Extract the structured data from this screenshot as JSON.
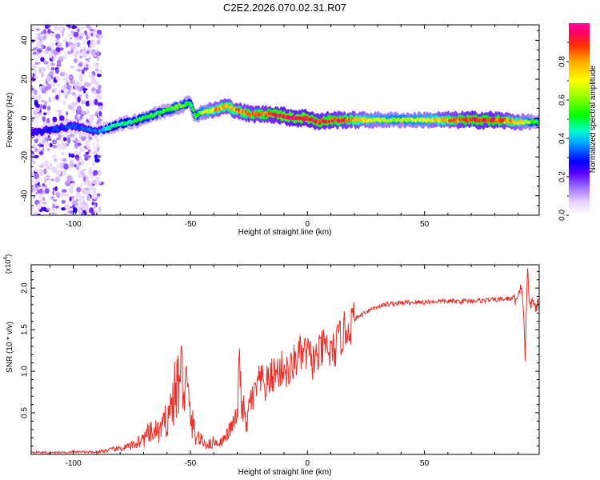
{
  "title": "C2E2.2026.070.02.31.R07",
  "chart_data": [
    {
      "type": "heatmap",
      "xlabel": "Height of straight line (km)",
      "ylabel": "Frequency (Hz)",
      "xlim": [
        -118,
        99
      ],
      "ylim": [
        -50,
        48
      ],
      "x_ticks": [
        -100,
        -50,
        0,
        50
      ],
      "x_tick_labels": [
        "-100",
        "-50",
        "0",
        "50"
      ],
      "y_ticks": [
        -40,
        -20,
        0,
        20,
        40
      ],
      "y_tick_labels": [
        "-40",
        "-20",
        "0",
        "20",
        "40"
      ],
      "colorbar": {
        "label": "Normalized spectral amplitude",
        "range": [
          0,
          1
        ],
        "ticks": [
          0.0,
          0.2,
          0.4,
          0.6,
          0.8
        ],
        "tick_labels": [
          "0.0",
          "0.2",
          "0.4",
          "0.6",
          "0.8"
        ]
      },
      "ridge": {
        "x": [
          -118,
          -110,
          -100,
          -90,
          -85,
          -80,
          -75,
          -70,
          -65,
          -60,
          -55,
          -50,
          -48,
          -45,
          -40,
          -35,
          -30,
          -25,
          -20,
          -15,
          -10,
          -5,
          0,
          5,
          10,
          15,
          20,
          30,
          40,
          50,
          60,
          70,
          80,
          90,
          99
        ],
        "frequency": [
          -8,
          -6,
          -4,
          -7,
          -5,
          -3,
          -2,
          0,
          2,
          4,
          6,
          8,
          1,
          3,
          4,
          6,
          4,
          2,
          2,
          2,
          1,
          0,
          0,
          -2,
          -1,
          -1,
          -1,
          -1,
          -1,
          -1,
          -1,
          -1,
          -1,
          -2,
          -2
        ],
        "amplitude": [
          0.25,
          0.3,
          0.35,
          0.35,
          0.45,
          0.5,
          0.5,
          0.55,
          0.55,
          0.55,
          0.6,
          0.55,
          0.55,
          0.65,
          0.8,
          0.85,
          0.85,
          0.9,
          0.9,
          0.95,
          1.0,
          1.0,
          1.0,
          0.95,
          0.95,
          0.9,
          0.85,
          0.7,
          0.65,
          0.7,
          0.85,
          0.95,
          0.95,
          0.8,
          0.5
        ]
      }
    },
    {
      "type": "line",
      "xlabel": "Height of straight line (km)",
      "ylabel": "SNR (10 * v/v)",
      "y_scale_label": "(x10",
      "y_scale_exponent": "4",
      "xlim": [
        -118,
        99
      ],
      "ylim": [
        0,
        2.28
      ],
      "x_ticks": [
        -100,
        -50,
        0,
        50
      ],
      "x_tick_labels": [
        "-100",
        "-50",
        "0",
        "50"
      ],
      "y_ticks": [
        0.5,
        1.0,
        1.5,
        2.0
      ],
      "y_tick_labels": [
        "0.5",
        "1.0",
        "1.5",
        "2.0"
      ],
      "color": "#e8302a",
      "series": {
        "x": [
          -118,
          -110,
          -100,
          -90,
          -85,
          -80,
          -75,
          -72,
          -70,
          -68,
          -65,
          -62,
          -60,
          -58,
          -56,
          -54,
          -52,
          -50,
          -48,
          -45,
          -42,
          -40,
          -38,
          -35,
          -32,
          -30,
          -29,
          -28,
          -27,
          -26,
          -25,
          -24,
          -23,
          -22,
          -20,
          -18,
          -15,
          -12,
          -10,
          -8,
          -6,
          -4,
          -2,
          0,
          2,
          4,
          6,
          8,
          10,
          12,
          14,
          16,
          18,
          20,
          22,
          25,
          30,
          35,
          40,
          45,
          50,
          55,
          60,
          65,
          70,
          75,
          80,
          85,
          88,
          90,
          91,
          92,
          93,
          94,
          95,
          96,
          97,
          99
        ],
        "values": [
          0.03,
          0.02,
          0.03,
          0.03,
          0.05,
          0.07,
          0.1,
          0.16,
          0.18,
          0.24,
          0.27,
          0.3,
          0.45,
          0.6,
          0.8,
          0.95,
          0.85,
          0.45,
          0.25,
          0.15,
          0.12,
          0.15,
          0.13,
          0.2,
          0.35,
          0.45,
          1.05,
          0.62,
          0.5,
          0.3,
          0.55,
          0.7,
          0.62,
          0.8,
          0.88,
          0.82,
          0.95,
          1.0,
          1.05,
          0.95,
          1.1,
          1.18,
          1.2,
          1.22,
          1.12,
          1.15,
          1.25,
          1.3,
          1.2,
          1.28,
          1.4,
          1.48,
          1.55,
          1.62,
          1.66,
          1.72,
          1.78,
          1.81,
          1.82,
          1.83,
          1.83,
          1.84,
          1.84,
          1.84,
          1.85,
          1.85,
          1.86,
          1.87,
          1.88,
          1.86,
          1.98,
          1.9,
          1.18,
          2.25,
          1.75,
          1.83,
          1.8,
          1.78
        ]
      }
    }
  ]
}
